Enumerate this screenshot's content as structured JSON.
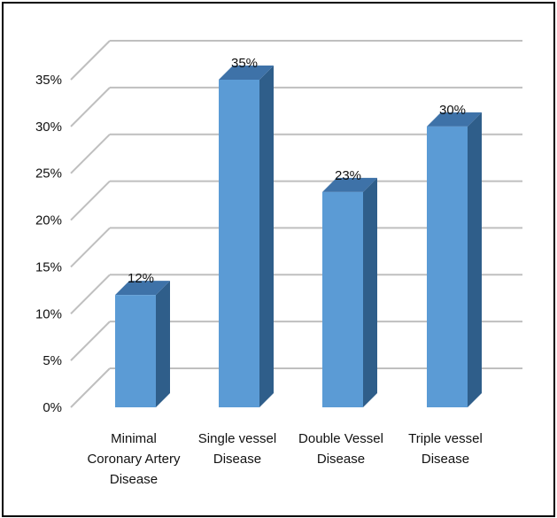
{
  "chart_data": {
    "type": "bar",
    "title": "",
    "xlabel": "",
    "ylabel": "",
    "categories": [
      [
        "Minimal",
        "Coronary Artery",
        "Disease"
      ],
      [
        "Single vessel",
        "Disease"
      ],
      [
        "Double Vessel",
        "Disease"
      ],
      [
        "Triple vessel",
        "Disease"
      ]
    ],
    "values": [
      12,
      35,
      23,
      30
    ],
    "data_labels": [
      "12%",
      "35%",
      "23%",
      "30%"
    ],
    "y_ticks": [
      "0%",
      "5%",
      "10%",
      "15%",
      "20%",
      "25%",
      "30%",
      "35%"
    ],
    "ylim": [
      0,
      35
    ],
    "grid": true,
    "style": "3d-column",
    "colors": {
      "bar_front": "#5B9BD5",
      "bar_side": "#2F5E8A",
      "bar_top": "#3E72A8",
      "gridline": "#BFBFBF"
    }
  }
}
